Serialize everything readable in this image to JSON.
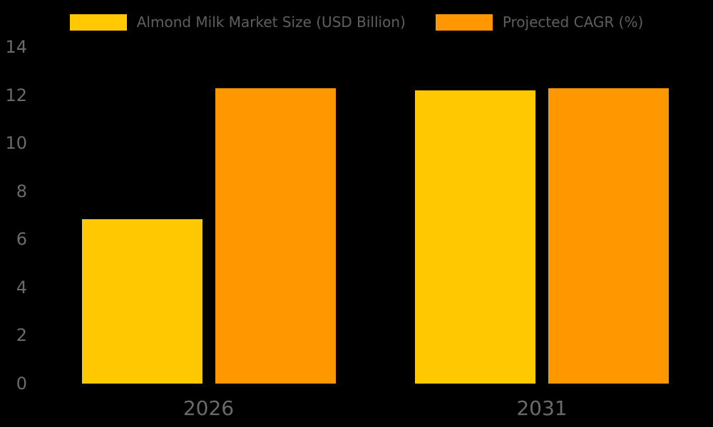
{
  "chart_data": {
    "type": "bar",
    "categories": [
      "2026",
      "2031"
    ],
    "series": [
      {
        "name": "Almond Milk Market Size (USD Billion)",
        "color": "#FFC800",
        "values": [
          6.83,
          12.19
        ]
      },
      {
        "name": "Projected CAGR (%)",
        "color": "#FF9800",
        "values": [
          12.28,
          12.28
        ]
      }
    ],
    "yticks": [
      0,
      2,
      4,
      6,
      8,
      10,
      12,
      14
    ],
    "ylim": [
      0,
      14
    ],
    "title": "",
    "xlabel": "",
    "ylabel": "",
    "legend_position": "top-center",
    "grid": false,
    "background_color": "#000000",
    "legend_text_color": "#5f5f5f",
    "tick_text_color": "#6b6b6b"
  }
}
